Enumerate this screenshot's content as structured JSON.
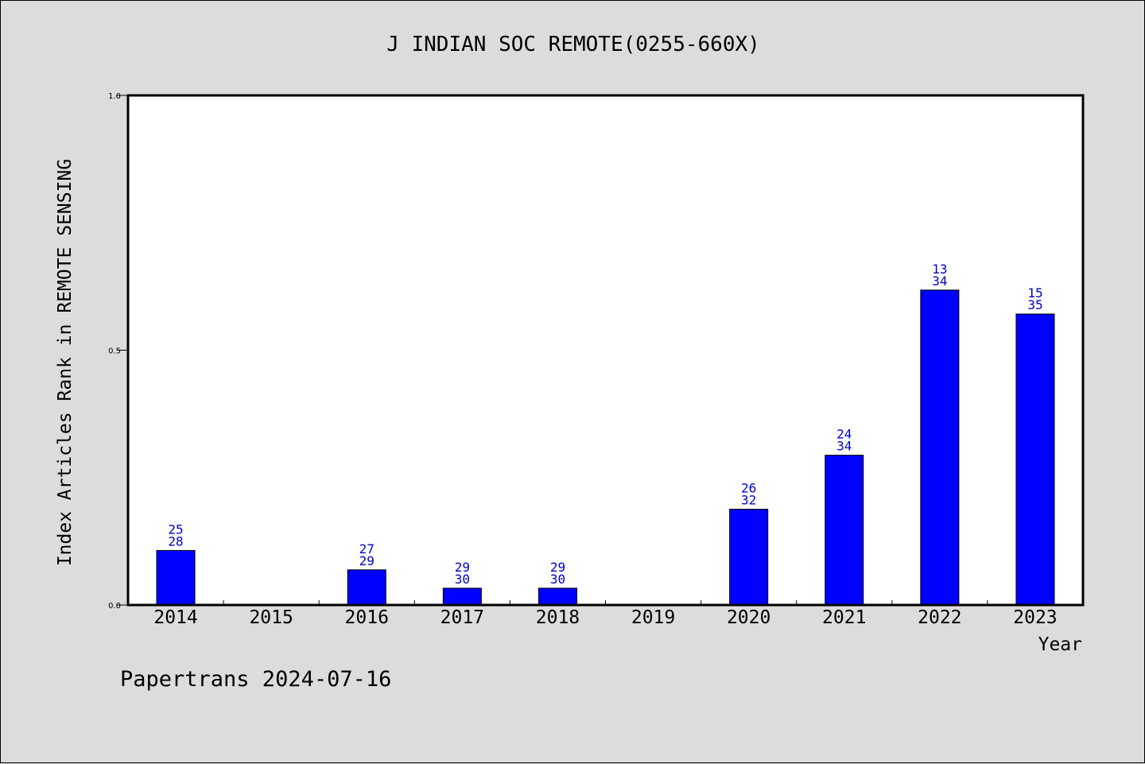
{
  "chart_data": {
    "type": "bar",
    "title": "J INDIAN SOC REMOTE(0255-660X)",
    "xlabel": "Year",
    "ylabel": "Index Articles Rank in REMOTE SENSING",
    "ylim": [
      0,
      1
    ],
    "yticks": [
      "0.0",
      "0.5",
      "1.0"
    ],
    "ytick_values": [
      0,
      0.5,
      1
    ],
    "categories": [
      "2014",
      "2015",
      "2016",
      "2017",
      "2018",
      "2019",
      "2020",
      "2021",
      "2022",
      "2023"
    ],
    "values": [
      0.107,
      0,
      0.069,
      0.033,
      0.033,
      0,
      0.188,
      0.294,
      0.618,
      0.571
    ],
    "labels_top": [
      "25",
      "",
      "27",
      "29",
      "29",
      "",
      "26",
      "24",
      "13",
      "15"
    ],
    "labels_bottom": [
      "28",
      "",
      "29",
      "30",
      "30",
      "",
      "32",
      "34",
      "34",
      "35"
    ],
    "grid": false,
    "bar_color": "#0000ff",
    "label_color": "#0000cc"
  },
  "footer": "Papertrans 2024-07-16"
}
